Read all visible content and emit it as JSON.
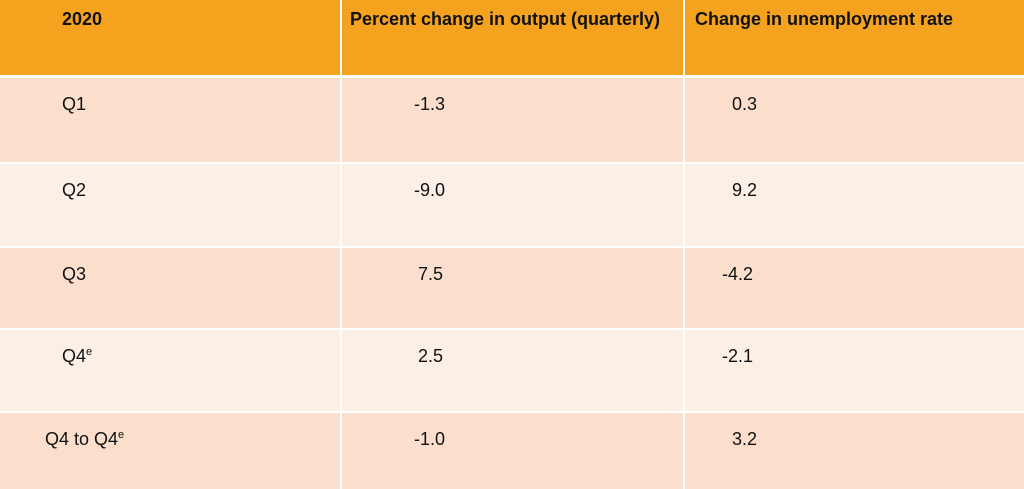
{
  "table": {
    "header": [
      "2020",
      "Percent change in output (quarterly)",
      "Change in unemployment rate"
    ],
    "rows": [
      [
        {
          "text": "Q1"
        },
        "-1.3",
        "0.3"
      ],
      [
        {
          "text": "Q2"
        },
        "-9.0",
        "9.2"
      ],
      [
        {
          "text": "Q3"
        },
        "7.5",
        "-4.2"
      ],
      [
        {
          "text": "Q4",
          "sup": "e"
        },
        "2.5",
        "-2.1"
      ],
      [
        {
          "text": "Q4 to Q4",
          "sup": "e"
        },
        "-1.0",
        "3.2"
      ]
    ]
  }
}
